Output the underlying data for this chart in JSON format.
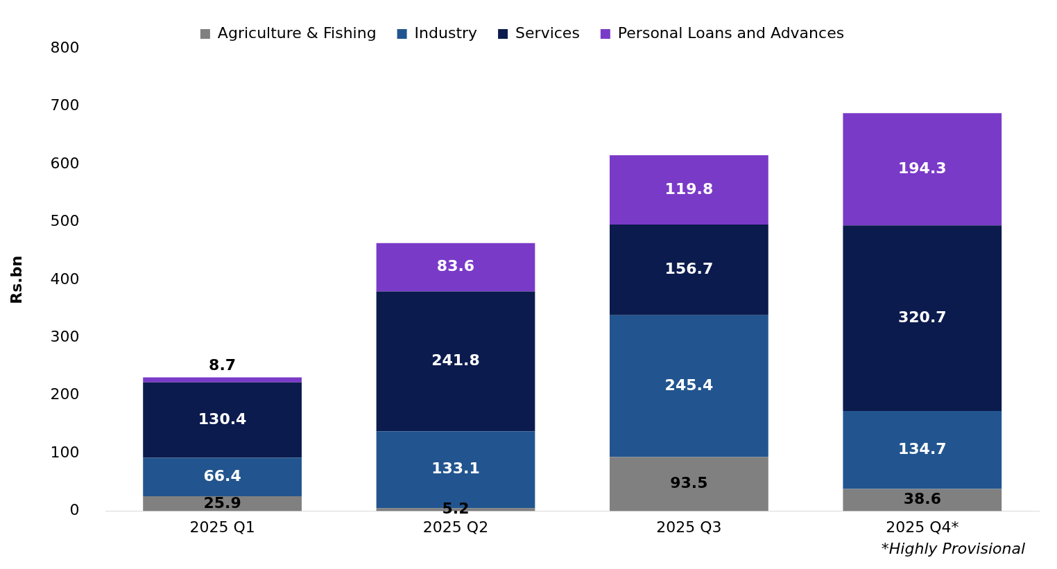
{
  "chart_data": {
    "type": "bar",
    "stacked": true,
    "ylabel": "Rs.bn",
    "categories": [
      "2025 Q1",
      "2025 Q2",
      "2025 Q3",
      "2025 Q4*"
    ],
    "series": [
      {
        "name": "Agriculture & Fishing",
        "color": "#808080",
        "values": [
          25.9,
          5.2,
          93.5,
          38.6
        ]
      },
      {
        "name": "Industry",
        "color": "#22558f",
        "values": [
          66.4,
          133.1,
          245.4,
          134.7
        ]
      },
      {
        "name": "Services",
        "color": "#0b1b4d",
        "values": [
          130.4,
          241.8,
          156.7,
          320.7
        ]
      },
      {
        "name": "Personal Loans and Advances",
        "color": "#7a3ac8",
        "values": [
          8.7,
          83.6,
          119.8,
          194.3
        ]
      }
    ],
    "ylim": [
      0,
      800
    ],
    "yticks": [
      0,
      100,
      200,
      300,
      400,
      500,
      600,
      700,
      800
    ],
    "grid": false,
    "legend": "top",
    "data_labels": true,
    "annotations": [
      "*Highly Provisional"
    ]
  }
}
